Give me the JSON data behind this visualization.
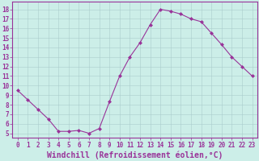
{
  "x": [
    0,
    1,
    2,
    3,
    4,
    5,
    6,
    7,
    8,
    9,
    10,
    11,
    12,
    13,
    14,
    15,
    16,
    17,
    18,
    19,
    20,
    21,
    22,
    23
  ],
  "y": [
    9.5,
    8.5,
    7.5,
    6.5,
    5.2,
    5.2,
    5.3,
    5.0,
    5.5,
    8.3,
    11.0,
    13.0,
    14.5,
    16.4,
    18.0,
    17.8,
    17.5,
    17.0,
    16.7,
    15.5,
    14.3,
    13.0,
    12.0,
    11.0
  ],
  "line_color": "#993399",
  "marker": "D",
  "marker_size": 2.0,
  "bg_color": "#cceee8",
  "grid_color": "#aacccc",
  "xlabel": "Windchill (Refroidissement éolien,°C)",
  "ylim": [
    4.5,
    18.8
  ],
  "xlim": [
    -0.5,
    23.5
  ],
  "yticks": [
    5,
    6,
    7,
    8,
    9,
    10,
    11,
    12,
    13,
    14,
    15,
    16,
    17,
    18
  ],
  "xticks": [
    0,
    1,
    2,
    3,
    4,
    5,
    6,
    7,
    8,
    9,
    10,
    11,
    12,
    13,
    14,
    15,
    16,
    17,
    18,
    19,
    20,
    21,
    22,
    23
  ],
  "tick_fontsize": 5.5,
  "xlabel_fontsize": 7.0,
  "label_color": "#993399",
  "spine_color": "#993399",
  "linewidth": 0.8
}
